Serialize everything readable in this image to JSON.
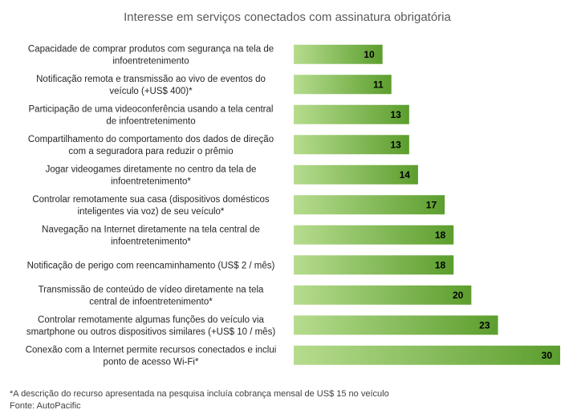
{
  "chart_data": {
    "type": "bar",
    "orientation": "horizontal",
    "title": "Interesse em serviços conectados com assinatura obrigatória",
    "xlim": [
      0,
      30
    ],
    "grid": false,
    "legend": "none",
    "bar_color_light": "#b6dc8e",
    "bar_color_dark": "#5c9e2e",
    "categories": [
      [
        "Capacidade de comprar produtos com segurança na tela de",
        "infoentretenimento"
      ],
      [
        "Notificação remota e transmissão ao vivo de eventos do",
        "veículo (+US$ 400)*"
      ],
      [
        "Participação de uma videoconferência usando a tela central",
        "de infoentretenimento"
      ],
      [
        "Compartilhamento do comportamento dos dados de direção",
        "com a seguradora para reduzir o prêmio"
      ],
      [
        "Jogar videogames diretamente no centro da tela de",
        "infoentretenimento*"
      ],
      [
        "Controlar remotamente sua casa (dispositivos domésticos",
        "inteligentes via voz) de seu veículo*"
      ],
      [
        "Navegação na Internet diretamente na tela central de",
        "infoentretenimento*"
      ],
      [
        "Notificação de perigo com reencaminhamento (US$ 2 / mês)"
      ],
      [
        "Transmissão de conteúdo de vídeo diretamente na tela",
        "central de infoentretenimento*"
      ],
      [
        "Controlar remotamente algumas funções do veículo via",
        "smartphone ou outros dispositivos similares (+US$ 10 / mês)"
      ],
      [
        "Conexão com a Internet permite recursos conectados e inclui",
        "ponto de acesso Wi-Fi*"
      ]
    ],
    "values": [
      10,
      11,
      13,
      13,
      14,
      17,
      18,
      18,
      20,
      23,
      30
    ]
  },
  "footnotes": {
    "note": "*A descrição do recurso apresentada na pesquisa incluía cobrança mensal de US$ 15 no veículo",
    "source": "Fonte: AutoPacific"
  }
}
